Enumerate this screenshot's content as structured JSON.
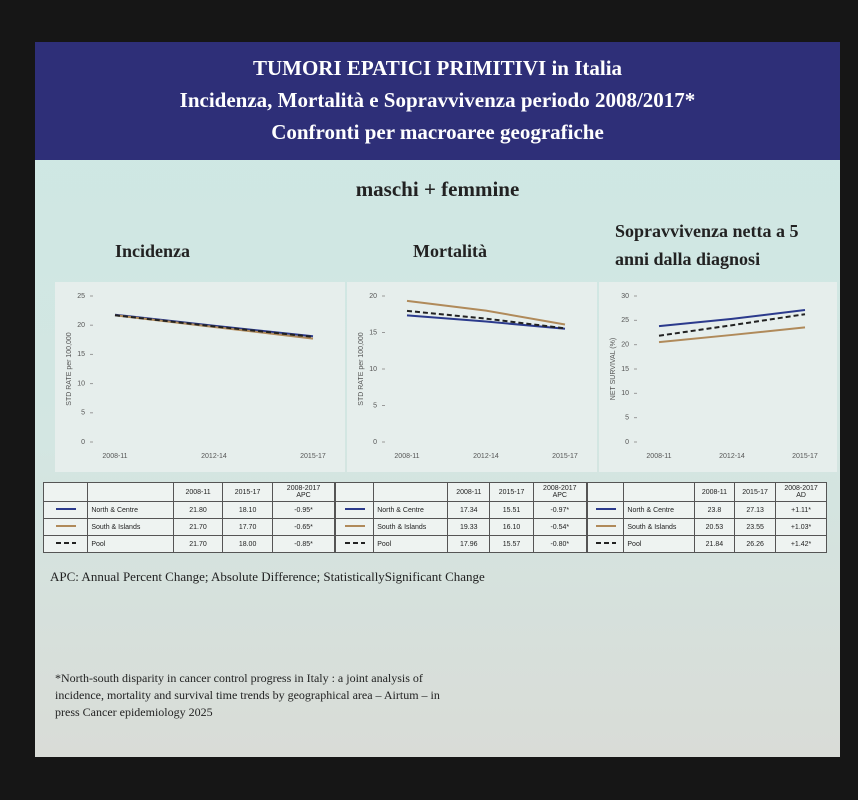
{
  "slide": {
    "title_lines": [
      "TUMORI EPATICI PRIMITIVI in Italia",
      "Incidenza, Mortalità e Sopravvivenza  periodo 2008/2017*",
      "Confronti per macroaree geografiche"
    ],
    "subtitle": "maschi + femmine",
    "abbreviations": "APC: Annual Percent Change;  Absolute Difference; StatisticallySignificant Change",
    "reference": "*North-south disparity in cancer control progress in Italy : a joint analysis of incidence, mortality and survival time trends by geographical area – Airtum – in press Cancer epidemiology 2025"
  },
  "chart_data": [
    {
      "type": "line",
      "title": "Incidenza",
      "y_label": "STD RATE per 100,000",
      "categories": [
        "2008-11",
        "2012-14",
        "2015-17"
      ],
      "ylim": [
        0,
        25
      ],
      "yticks": [
        0,
        5,
        10,
        15,
        20,
        25
      ],
      "grid": false,
      "change_period": "2008-2017",
      "change_label": "APC",
      "series": [
        {
          "name": "North & Centre",
          "color": "#2b3a8c",
          "line_style": "solid",
          "values": [
            21.8,
            19.9,
            18.1
          ],
          "value_labels": [
            "21.80",
            null,
            "18.10"
          ],
          "change": "-0.95*"
        },
        {
          "name": "South & Islands",
          "color": "#b08a5a",
          "line_style": "solid",
          "values": [
            21.7,
            19.7,
            17.7
          ],
          "value_labels": [
            "21.70",
            null,
            "17.70"
          ],
          "change": "-0.65*"
        },
        {
          "name": "Pool",
          "color": "#222222",
          "line_style": "dashed",
          "values": [
            21.7,
            19.8,
            18.0
          ],
          "value_labels": [
            "21.70",
            null,
            "18.00"
          ],
          "change": "-0.85*"
        }
      ]
    },
    {
      "type": "line",
      "title": "Mortalità",
      "y_label": "STD RATE per 100,000",
      "categories": [
        "2008-11",
        "2012-14",
        "2015-17"
      ],
      "ylim": [
        0,
        20
      ],
      "yticks": [
        0,
        5,
        10,
        15,
        20
      ],
      "grid": false,
      "change_period": "2008-2017",
      "change_label": "APC",
      "series": [
        {
          "name": "North & Centre",
          "color": "#2b3a8c",
          "line_style": "solid",
          "values": [
            17.34,
            16.5,
            15.51
          ],
          "value_labels": null,
          "change": "-0.97*"
        },
        {
          "name": "South & Islands",
          "color": "#b08a5a",
          "line_style": "solid",
          "values": [
            19.33,
            18.0,
            16.1
          ],
          "value_labels": [
            null,
            null,
            "16.10"
          ],
          "change": "-0.54*"
        },
        {
          "name": "Pool",
          "color": "#222222",
          "line_style": "dashed",
          "values": [
            17.96,
            16.9,
            15.57
          ],
          "value_labels": null,
          "change": "-0.80*"
        }
      ]
    },
    {
      "type": "line",
      "title": "Sopravvivenza netta a 5 anni dalla diagnosi",
      "y_label": "NET SURVIVAL (%)",
      "categories": [
        "2008-11",
        "2012-14",
        "2015-17"
      ],
      "ylim": [
        0,
        30
      ],
      "yticks": [
        0,
        5,
        10,
        15,
        20,
        25,
        30
      ],
      "grid": false,
      "change_period": "2008-2017",
      "change_label": "AD",
      "series": [
        {
          "name": "North & Centre",
          "color": "#2b3a8c",
          "line_style": "solid",
          "values": [
            23.8,
            25.3,
            27.13
          ],
          "value_labels": null,
          "change": "+1.11*"
        },
        {
          "name": "South & Islands",
          "color": "#b08a5a",
          "line_style": "solid",
          "values": [
            20.53,
            22.0,
            23.55
          ],
          "value_labels": null,
          "change": "+1.03*"
        },
        {
          "name": "Pool",
          "color": "#222222",
          "line_style": "dashed",
          "values": [
            21.84,
            24.0,
            26.26
          ],
          "value_labels": null,
          "change": "+1.42*"
        }
      ]
    }
  ]
}
